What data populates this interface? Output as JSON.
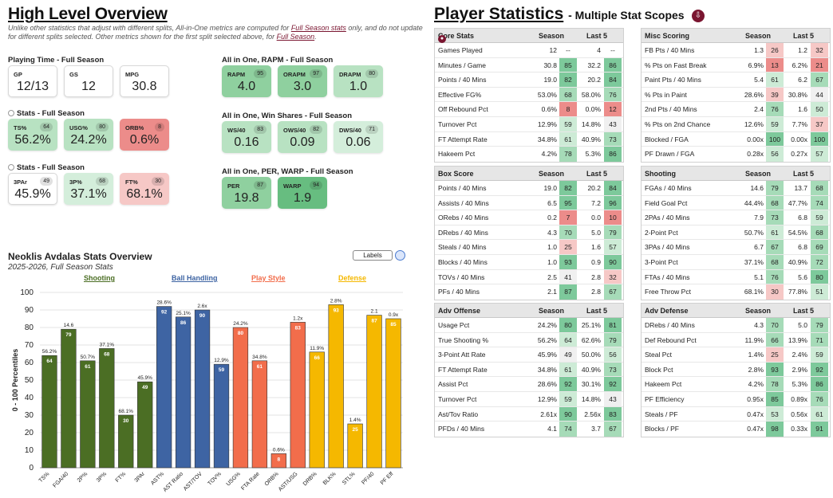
{
  "overview": {
    "title": "High Level Overview",
    "note_parts": [
      "Unlike other statistics that adjust with different splits, All-in-One metrics are computed for ",
      "Full Season stats",
      " only, and do not update for different splits selected. Other metrics shown for the first split selected above, for ",
      "Full Season",
      "."
    ],
    "playing_time": {
      "title": "Playing Time - Full Season",
      "cards": [
        {
          "label": "GP",
          "value": "12/13"
        },
        {
          "label": "GS",
          "value": "12"
        },
        {
          "label": "MPG",
          "value": "30.8"
        }
      ]
    },
    "stats1": {
      "title": "Stats - Full Season",
      "cards": [
        {
          "label": "TS%",
          "pct": "64",
          "value": "56.2%",
          "tone": "g2"
        },
        {
          "label": "USG%",
          "pct": "80",
          "value": "24.2%",
          "tone": "g2"
        },
        {
          "label": "ORB%",
          "pct": "8",
          "value": "0.6%",
          "tone": "r1"
        }
      ]
    },
    "stats2": {
      "title": "Stats - Full Season",
      "cards": [
        {
          "label": "3PAr",
          "pct": "49",
          "value": "45.9%",
          "tone": ""
        },
        {
          "label": "3P%",
          "pct": "68",
          "value": "37.1%",
          "tone": "g3"
        },
        {
          "label": "FT%",
          "pct": "30",
          "value": "68.1%",
          "tone": "r2"
        }
      ]
    },
    "rapm": {
      "title": "All in One, RAPM - Full Season",
      "cards": [
        {
          "label": "RAPM",
          "pct": "95",
          "value": "4.0",
          "tone": "g1"
        },
        {
          "label": "ORAPM",
          "pct": "97",
          "value": "3.0",
          "tone": "g1"
        },
        {
          "label": "DRAPM",
          "pct": "80",
          "value": "1.0",
          "tone": "g2"
        }
      ]
    },
    "ws": {
      "title": "All in One, Win Shares - Full Season",
      "cards": [
        {
          "label": "WS/40",
          "pct": "83",
          "value": "0.16",
          "tone": "g2"
        },
        {
          "label": "OWS/40",
          "pct": "82",
          "value": "0.09",
          "tone": "g2"
        },
        {
          "label": "DWS/40",
          "pct": "71",
          "value": "0.06",
          "tone": "g3"
        }
      ]
    },
    "per": {
      "title": "All in One, PER, WARP - Full Season",
      "cards": [
        {
          "label": "PER",
          "pct": "87",
          "value": "19.8",
          "tone": "g1"
        },
        {
          "label": "WARP",
          "pct": "94",
          "value": "1.9",
          "tone": "g4"
        }
      ]
    }
  },
  "chart_data": {
    "type": "bar",
    "title": "Neoklis Avdalas Stats Overview",
    "subtitle": "2025-2026, Full Season Stats",
    "ylabel": "0 - 100 Percentiles",
    "ylim": [
      0,
      100
    ],
    "yticks": [
      "0",
      "10",
      "20",
      "30",
      "40",
      "50",
      "60",
      "70",
      "80",
      "90",
      "100"
    ],
    "labels_button": "Labels",
    "groups": [
      {
        "name": "Shooting",
        "color": "#4b6e24"
      },
      {
        "name": "Ball Handling",
        "color": "#3e64a3"
      },
      {
        "name": "Play Style",
        "color": "#f26d4b"
      },
      {
        "name": "Defense",
        "color": "#f5b800"
      }
    ],
    "categories": [
      "TS%",
      "FGA/40",
      "2P%",
      "3P%",
      "FT%",
      "3PAr",
      "AST%",
      "AST Ratio",
      "AST/TOV",
      "TOV%",
      "USG%",
      "FTA Rate",
      "ORB%",
      "AST/USG",
      "DRB%",
      "BLK%",
      "STL%",
      "PF/40",
      "PF Eff"
    ],
    "values": [
      64,
      79,
      61,
      68,
      30,
      49,
      92,
      86,
      90,
      59,
      80,
      61,
      8,
      83,
      66,
      93,
      25,
      87,
      85
    ],
    "stat_labels": [
      "56.2%",
      "14.6",
      "50.7%",
      "37.1%",
      "68.1%",
      "45.9%",
      "28.6%",
      "25.1%",
      "2.6x",
      "12.9%",
      "24.2%",
      "34.8%",
      "0.6%",
      "1.2x",
      "11.9%",
      "2.8%",
      "1.4%",
      "2.1",
      "0.9x"
    ],
    "group_index": [
      0,
      0,
      0,
      0,
      0,
      0,
      1,
      1,
      1,
      1,
      2,
      2,
      2,
      2,
      3,
      3,
      3,
      3,
      3
    ]
  },
  "stats": {
    "title": "Player Statistics",
    "subtitle": "- Multiple Stat Scopes",
    "download_icon": "download-icon",
    "col_a": "Season",
    "col_b": "Last 5",
    "panels": [
      {
        "name": "Core Stats",
        "icon": true,
        "rows": [
          [
            "Games Played",
            "12",
            "",
            "4",
            ""
          ],
          [
            "Minutes / Game",
            "30.8",
            "85",
            "32.2",
            "86"
          ],
          [
            "Points / 40 Mins",
            "19.0",
            "82",
            "20.2",
            "84"
          ],
          [
            "Effective FG%",
            "53.0%",
            "68",
            "58.0%",
            "76"
          ],
          [
            "Off Rebound Pct",
            "0.6%",
            "8",
            "0.0%",
            "12"
          ],
          [
            "Turnover Pct",
            "12.9%",
            "59",
            "14.8%",
            "43"
          ],
          [
            "FT Attempt Rate",
            "34.8%",
            "61",
            "40.9%",
            "73"
          ],
          [
            "Hakeem Pct",
            "4.2%",
            "78",
            "5.3%",
            "86"
          ]
        ]
      },
      {
        "name": "Misc Scoring",
        "rows": [
          [
            "FB Pts / 40 Mins",
            "1.3",
            "26",
            "1.2",
            "32"
          ],
          [
            "% Pts on Fast Break",
            "6.9%",
            "13",
            "6.2%",
            "21"
          ],
          [
            "Paint Pts / 40 Mins",
            "5.4",
            "61",
            "6.2",
            "67"
          ],
          [
            "% Pts in Paint",
            "28.6%",
            "39",
            "30.8%",
            "44"
          ],
          [
            "2nd Pts / 40 Mins",
            "2.4",
            "76",
            "1.6",
            "50"
          ],
          [
            "% Pts on 2nd Chance",
            "12.6%",
            "59",
            "7.7%",
            "37"
          ],
          [
            "Blocked / FGA",
            "0.00x",
            "100",
            "0.00x",
            "100"
          ],
          [
            "PF Drawn / FGA",
            "0.28x",
            "56",
            "0.27x",
            "57"
          ]
        ]
      },
      {
        "name": "Box Score",
        "rows": [
          [
            "Points / 40 Mins",
            "19.0",
            "82",
            "20.2",
            "84"
          ],
          [
            "Assists / 40 Mins",
            "6.5",
            "95",
            "7.2",
            "96"
          ],
          [
            "ORebs / 40 Mins",
            "0.2",
            "7",
            "0.0",
            "10"
          ],
          [
            "DRebs / 40 Mins",
            "4.3",
            "70",
            "5.0",
            "79"
          ],
          [
            "Steals / 40 Mins",
            "1.0",
            "25",
            "1.6",
            "57"
          ],
          [
            "Blocks / 40 Mins",
            "1.0",
            "93",
            "0.9",
            "90"
          ],
          [
            "TOVs / 40 Mins",
            "2.5",
            "41",
            "2.8",
            "32"
          ],
          [
            "PFs / 40 Mins",
            "2.1",
            "87",
            "2.8",
            "67"
          ]
        ]
      },
      {
        "name": "Shooting",
        "rows": [
          [
            "FGAs / 40 Mins",
            "14.6",
            "79",
            "13.7",
            "68"
          ],
          [
            "Field Goal Pct",
            "44.4%",
            "68",
            "47.7%",
            "74"
          ],
          [
            "2PAs / 40 Mins",
            "7.9",
            "73",
            "6.8",
            "59"
          ],
          [
            "2-Point Pct",
            "50.7%",
            "61",
            "54.5%",
            "68"
          ],
          [
            "3PAs / 40 Mins",
            "6.7",
            "67",
            "6.8",
            "69"
          ],
          [
            "3-Point Pct",
            "37.1%",
            "68",
            "40.9%",
            "72"
          ],
          [
            "FTAs / 40 Mins",
            "5.1",
            "76",
            "5.6",
            "80"
          ],
          [
            "Free Throw Pct",
            "68.1%",
            "30",
            "77.8%",
            "51"
          ]
        ]
      },
      {
        "name": "Adv Offense",
        "rows": [
          [
            "Usage Pct",
            "24.2%",
            "80",
            "25.1%",
            "81"
          ],
          [
            "True Shooting %",
            "56.2%",
            "64",
            "62.6%",
            "79"
          ],
          [
            "3-Point Att Rate",
            "45.9%",
            "49",
            "50.0%",
            "56"
          ],
          [
            "FT Attempt Rate",
            "34.8%",
            "61",
            "40.9%",
            "73"
          ],
          [
            "Assist Pct",
            "28.6%",
            "92",
            "30.1%",
            "92"
          ],
          [
            "Turnover Pct",
            "12.9%",
            "59",
            "14.8%",
            "43"
          ],
          [
            "Ast/Tov Ratio",
            "2.61x",
            "90",
            "2.56x",
            "83"
          ],
          [
            "PFDs / 40 Mins",
            "4.1",
            "74",
            "3.7",
            "67"
          ]
        ]
      },
      {
        "name": "Adv Defense",
        "rows": [
          [
            "DRebs / 40 Mins",
            "4.3",
            "70",
            "5.0",
            "79"
          ],
          [
            "Def Rebound Pct",
            "11.9%",
            "66",
            "13.9%",
            "71"
          ],
          [
            "Steal Pct",
            "1.4%",
            "25",
            "2.4%",
            "59"
          ],
          [
            "Block Pct",
            "2.8%",
            "93",
            "2.9%",
            "92"
          ],
          [
            "Hakeem Pct",
            "4.2%",
            "78",
            "5.3%",
            "86"
          ],
          [
            "PF Efficiency",
            "0.95x",
            "85",
            "0.89x",
            "76"
          ],
          [
            "Steals / PF",
            "0.47x",
            "53",
            "0.56x",
            "61"
          ],
          [
            "Blocks / PF",
            "0.47x",
            "98",
            "0.33x",
            "91"
          ]
        ]
      }
    ]
  }
}
